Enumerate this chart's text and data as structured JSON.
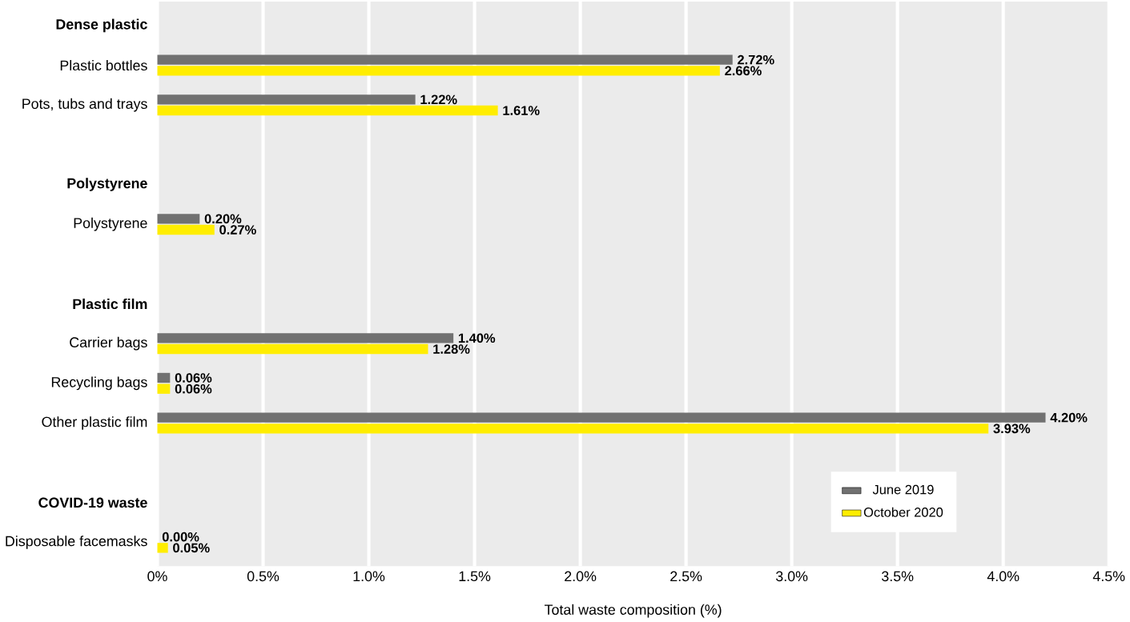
{
  "chart_data": {
    "type": "bar",
    "orientation": "horizontal",
    "xlabel": "Total waste composition (%)",
    "categories": [
      "Dense plastic",
      "Plastic bottles",
      "Pots, tubs and trays",
      null,
      "Polystyrene",
      "Polystyrene",
      null,
      "Plastic film",
      "Carrier bags",
      "Recycling bags",
      "Other plastic film",
      null,
      "COVID-19 waste",
      "Disposable facemasks"
    ],
    "series": [
      {
        "name": "June 2019",
        "color": "#717171",
        "values": [
          null,
          2.72,
          1.22,
          null,
          null,
          0.2,
          null,
          null,
          1.4,
          0.06,
          4.2,
          null,
          null,
          0.0
        ],
        "value_labels": [
          null,
          "2.72%",
          "1.22%",
          null,
          null,
          "0.20%",
          null,
          null,
          "1.40%",
          "0.06%",
          "4.20%",
          null,
          null,
          "0.00%"
        ]
      },
      {
        "name": "October 2020",
        "color": "#ffed00",
        "values": [
          null,
          2.66,
          1.61,
          null,
          null,
          0.27,
          null,
          null,
          1.28,
          0.06,
          3.93,
          null,
          null,
          0.05
        ],
        "value_labels": [
          null,
          "2.66%",
          "1.61%",
          null,
          null,
          "0.27%",
          null,
          null,
          "1.28%",
          "0.06%",
          "3.93%",
          null,
          null,
          "0.05%"
        ]
      }
    ],
    "xlim": [
      0,
      4.5
    ],
    "xticks": [
      {
        "value": 0,
        "label": "0%"
      },
      {
        "value": 0.5,
        "label": "0.5%"
      },
      {
        "value": 1.0,
        "label": "1.0%"
      },
      {
        "value": 1.5,
        "label": "1.5%"
      },
      {
        "value": 2.0,
        "label": "2.0%"
      },
      {
        "value": 2.5,
        "label": "2.5%"
      },
      {
        "value": 3.0,
        "label": "3.0%"
      },
      {
        "value": 3.5,
        "label": "3.5%"
      },
      {
        "value": 4.0,
        "label": "4.0%"
      },
      {
        "value": 4.5,
        "label": "4.5%"
      }
    ],
    "grid": "x",
    "legend": "bottom right"
  }
}
